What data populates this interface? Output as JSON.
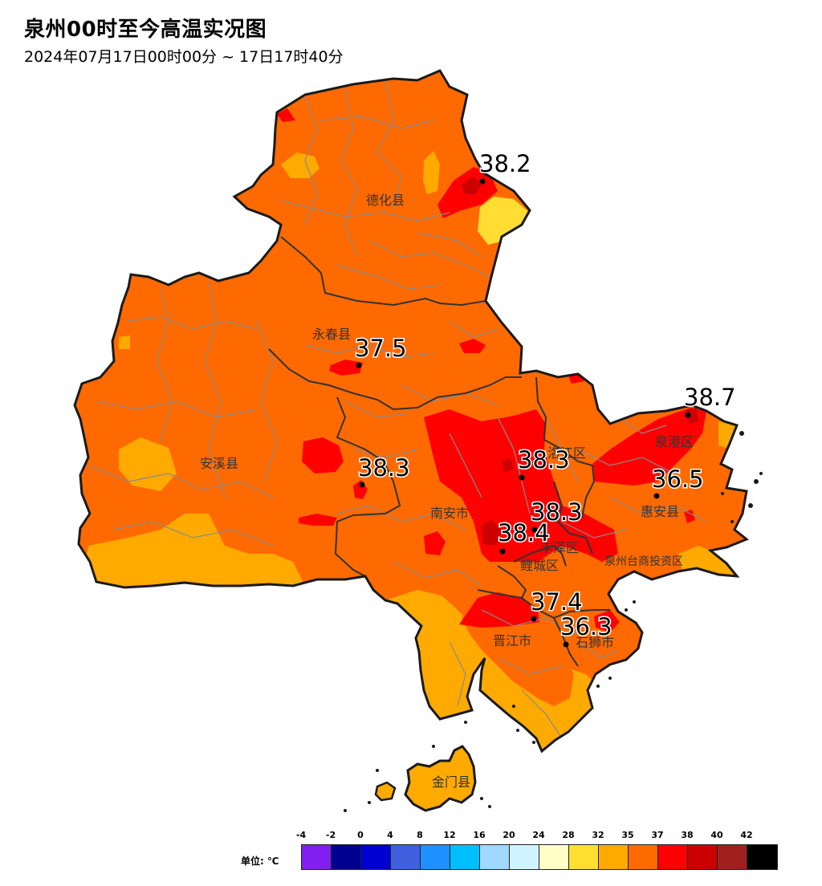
{
  "header": {
    "title": "泉州00时至今高温实况图",
    "subtitle": "2024年07月17日00时00分 ~ 17日17时40分"
  },
  "map": {
    "districts": [
      {
        "name": "德化县"
      },
      {
        "name": "永春县"
      },
      {
        "name": "安溪县"
      },
      {
        "name": "南安市"
      },
      {
        "name": "洛江区"
      },
      {
        "name": "泉港区"
      },
      {
        "name": "惠安县"
      },
      {
        "name": "丰泽区"
      },
      {
        "name": "鲤城区"
      },
      {
        "name": "泉州台商投资区"
      },
      {
        "name": "晋江市"
      },
      {
        "name": "石狮市"
      },
      {
        "name": "金门县"
      }
    ],
    "stations": [
      {
        "value": "38.2"
      },
      {
        "value": "37.5"
      },
      {
        "value": "38.7"
      },
      {
        "value": "38.3"
      },
      {
        "value": "38.3"
      },
      {
        "value": "36.5"
      },
      {
        "value": "38.3"
      },
      {
        "value": "38.4"
      },
      {
        "value": "37.4"
      },
      {
        "value": "36.3"
      }
    ],
    "colors": {
      "base": "#ff6a00",
      "ge35": "#ffaa00",
      "ge32": "#ffdd33",
      "ge38": "#ff0000",
      "ge40": "#cc0000"
    }
  },
  "legend": {
    "unit": "单位: ℃",
    "ticks": [
      "-4",
      "-2",
      "0",
      "4",
      "8",
      "12",
      "16",
      "20",
      "24",
      "28",
      "32",
      "35",
      "37",
      "38",
      "40",
      "42"
    ],
    "colors": [
      "#8020f0",
      "#000090",
      "#0000d0",
      "#4060e0",
      "#1e90ff",
      "#00bfff",
      "#a0d8ff",
      "#d0f4ff",
      "#ffffc8",
      "#ffe030",
      "#ffaa00",
      "#ff6a00",
      "#ff0000",
      "#cc0000",
      "#a02020",
      "#000000"
    ]
  }
}
